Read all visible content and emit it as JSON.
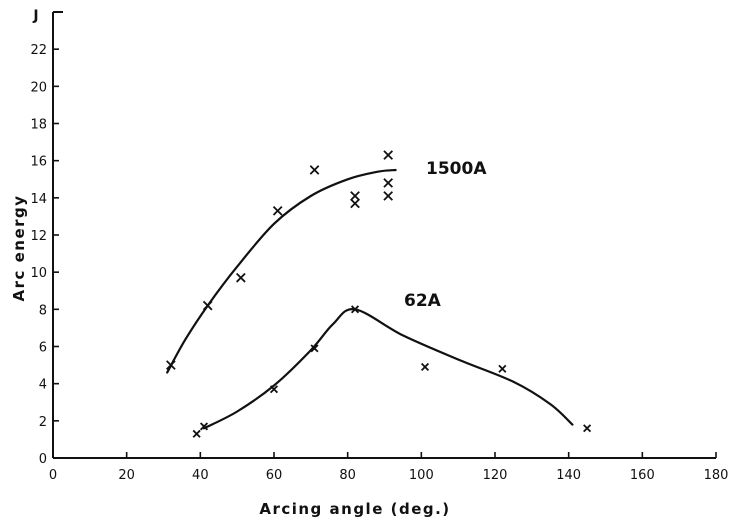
{
  "chart_data": {
    "type": "scatter",
    "title": "",
    "xlabel": "Arcing angle (deg.)",
    "ylabel": "Arc energy",
    "yunit": "J",
    "xlim": [
      0,
      180
    ],
    "ylim": [
      0,
      24
    ],
    "xticks": [
      0,
      20,
      40,
      60,
      80,
      100,
      120,
      140,
      160,
      180
    ],
    "yticks": [
      0,
      2,
      4,
      6,
      8,
      10,
      12,
      14,
      16,
      18,
      20,
      22
    ],
    "grid": false,
    "series": [
      {
        "name": "1500A",
        "marker": "x",
        "points": [
          [
            32,
            5.0
          ],
          [
            42,
            8.2
          ],
          [
            51,
            9.7
          ],
          [
            61,
            13.3
          ],
          [
            71,
            15.5
          ],
          [
            82,
            13.7
          ],
          [
            82,
            14.1
          ],
          [
            91,
            16.3
          ],
          [
            91,
            14.8
          ],
          [
            91,
            14.1
          ]
        ],
        "curve": [
          [
            31,
            4.6
          ],
          [
            36,
            6.4
          ],
          [
            42,
            8.2
          ],
          [
            50,
            10.3
          ],
          [
            60,
            12.6
          ],
          [
            70,
            14.1
          ],
          [
            80,
            15.0
          ],
          [
            88,
            15.4
          ],
          [
            93,
            15.5
          ]
        ]
      },
      {
        "name": "62A",
        "marker": "x",
        "points": [
          [
            39,
            1.3
          ],
          [
            41,
            1.7
          ],
          [
            60,
            3.7
          ],
          [
            71,
            5.9
          ],
          [
            82,
            8.0
          ],
          [
            101,
            4.9
          ],
          [
            122,
            4.8
          ],
          [
            145,
            1.6
          ]
        ],
        "curve": [
          [
            41,
            1.6
          ],
          [
            50,
            2.5
          ],
          [
            60,
            3.9
          ],
          [
            70,
            5.8
          ],
          [
            76,
            7.2
          ],
          [
            82,
            8.0
          ],
          [
            95,
            6.6
          ],
          [
            110,
            5.3
          ],
          [
            125,
            4.1
          ],
          [
            135,
            2.9
          ],
          [
            141,
            1.8
          ]
        ]
      }
    ]
  }
}
